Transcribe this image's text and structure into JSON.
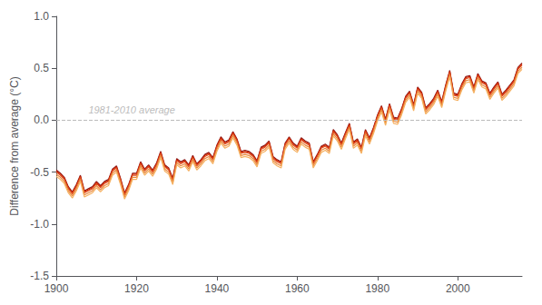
{
  "chart_data": {
    "type": "line",
    "ylabel": "Difference from average (°C)",
    "xlim": [
      1900,
      2016
    ],
    "ylim": [
      -1.5,
      1.0
    ],
    "xticks": [
      1900,
      1920,
      1940,
      1960,
      1980,
      2000
    ],
    "yticks": [
      -1.5,
      {
        "value": -1.0,
        "label": "-1.0"
      },
      -0.5,
      {
        "value": 0.0,
        "label": "0.0"
      },
      0.5,
      {
        "value": 1.0,
        "label": "1.0"
      }
    ],
    "grid": false,
    "annotations": [
      {
        "text": "1981-2010 average",
        "x": 1908,
        "y": 0.05,
        "color": "#AAAAAA"
      }
    ],
    "reference_lines": [
      {
        "y": 0,
        "color": "#BBBBBB",
        "line_style": "dashed"
      }
    ],
    "x": [
      1900,
      1901,
      1902,
      1903,
      1904,
      1905,
      1906,
      1907,
      1908,
      1909,
      1910,
      1911,
      1912,
      1913,
      1914,
      1915,
      1916,
      1917,
      1918,
      1919,
      1920,
      1921,
      1922,
      1923,
      1924,
      1925,
      1926,
      1927,
      1928,
      1929,
      1930,
      1931,
      1932,
      1933,
      1934,
      1935,
      1936,
      1937,
      1938,
      1939,
      1940,
      1941,
      1942,
      1943,
      1944,
      1945,
      1946,
      1947,
      1948,
      1949,
      1950,
      1951,
      1952,
      1953,
      1954,
      1955,
      1956,
      1957,
      1958,
      1959,
      1960,
      1961,
      1962,
      1963,
      1964,
      1965,
      1966,
      1967,
      1968,
      1969,
      1970,
      1971,
      1972,
      1973,
      1974,
      1975,
      1976,
      1977,
      1978,
      1979,
      1980,
      1981,
      1982,
      1983,
      1984,
      1985,
      1986,
      1987,
      1988,
      1989,
      1990,
      1991,
      1992,
      1993,
      1994,
      1995,
      1996,
      1997,
      1998,
      1999,
      2000,
      2001,
      2002,
      2003,
      2004,
      2005,
      2006,
      2007,
      2008,
      2009,
      2010,
      2011,
      2012,
      2013,
      2014,
      2015,
      2016
    ],
    "series": [
      {
        "color": "#8B1A1A",
        "values": [
          -0.48,
          -0.51,
          -0.55,
          -0.64,
          -0.69,
          -0.62,
          -0.53,
          -0.68,
          -0.66,
          -0.64,
          -0.59,
          -0.63,
          -0.59,
          -0.57,
          -0.47,
          -0.44,
          -0.56,
          -0.7,
          -0.62,
          -0.51,
          -0.51,
          -0.4,
          -0.47,
          -0.43,
          -0.48,
          -0.41,
          -0.3,
          -0.43,
          -0.46,
          -0.56,
          -0.37,
          -0.4,
          -0.38,
          -0.43,
          -0.34,
          -0.42,
          -0.38,
          -0.33,
          -0.31,
          -0.36,
          -0.24,
          -0.16,
          -0.21,
          -0.19,
          -0.11,
          -0.18,
          -0.3,
          -0.29,
          -0.3,
          -0.33,
          -0.39,
          -0.26,
          -0.24,
          -0.2,
          -0.35,
          -0.38,
          -0.4,
          -0.22,
          -0.16,
          -0.22,
          -0.25,
          -0.17,
          -0.2,
          -0.22,
          -0.4,
          -0.33,
          -0.25,
          -0.23,
          -0.26,
          -0.09,
          -0.14,
          -0.22,
          -0.12,
          -0.03,
          -0.21,
          -0.18,
          -0.26,
          -0.09,
          -0.17,
          -0.07,
          0.05,
          0.14,
          0.01,
          0.16,
          0.03,
          0.02,
          0.11,
          0.23,
          0.28,
          0.15,
          0.32,
          0.27,
          0.12,
          0.16,
          0.21,
          0.29,
          0.18,
          0.34,
          0.48,
          0.26,
          0.25,
          0.35,
          0.42,
          0.43,
          0.32,
          0.45,
          0.38,
          0.36,
          0.26,
          0.32,
          0.37,
          0.25,
          0.29,
          0.34,
          0.39,
          0.51,
          0.55
        ]
      },
      {
        "color": "#CC2200",
        "values": [
          -0.49,
          -0.52,
          -0.56,
          -0.65,
          -0.7,
          -0.63,
          -0.54,
          -0.69,
          -0.67,
          -0.65,
          -0.6,
          -0.64,
          -0.6,
          -0.58,
          -0.48,
          -0.45,
          -0.57,
          -0.71,
          -0.63,
          -0.52,
          -0.52,
          -0.41,
          -0.48,
          -0.44,
          -0.49,
          -0.42,
          -0.31,
          -0.44,
          -0.47,
          -0.57,
          -0.38,
          -0.41,
          -0.39,
          -0.44,
          -0.35,
          -0.43,
          -0.39,
          -0.34,
          -0.32,
          -0.37,
          -0.25,
          -0.17,
          -0.22,
          -0.2,
          -0.12,
          -0.19,
          -0.31,
          -0.3,
          -0.31,
          -0.34,
          -0.4,
          -0.27,
          -0.25,
          -0.21,
          -0.36,
          -0.39,
          -0.41,
          -0.23,
          -0.17,
          -0.23,
          -0.26,
          -0.18,
          -0.21,
          -0.23,
          -0.41,
          -0.34,
          -0.26,
          -0.24,
          -0.27,
          -0.1,
          -0.15,
          -0.23,
          -0.13,
          -0.04,
          -0.22,
          -0.19,
          -0.27,
          -0.1,
          -0.18,
          -0.08,
          0.04,
          0.13,
          0.0,
          0.15,
          0.02,
          0.01,
          0.1,
          0.22,
          0.27,
          0.14,
          0.31,
          0.26,
          0.11,
          0.15,
          0.2,
          0.28,
          0.17,
          0.33,
          0.47,
          0.25,
          0.24,
          0.34,
          0.41,
          0.42,
          0.31,
          0.44,
          0.37,
          0.35,
          0.25,
          0.31,
          0.36,
          0.24,
          0.28,
          0.33,
          0.38,
          0.5,
          0.54
        ]
      },
      {
        "color": "#E05020",
        "values": [
          -0.5,
          -0.53,
          -0.57,
          -0.66,
          -0.71,
          -0.64,
          -0.55,
          -0.7,
          -0.68,
          -0.66,
          -0.61,
          -0.65,
          -0.61,
          -0.59,
          -0.49,
          -0.46,
          -0.58,
          -0.72,
          -0.64,
          -0.53,
          -0.53,
          -0.42,
          -0.49,
          -0.45,
          -0.5,
          -0.43,
          -0.32,
          -0.45,
          -0.48,
          -0.58,
          -0.39,
          -0.42,
          -0.4,
          -0.45,
          -0.36,
          -0.44,
          -0.4,
          -0.35,
          -0.33,
          -0.38,
          -0.26,
          -0.18,
          -0.23,
          -0.21,
          -0.13,
          -0.2,
          -0.32,
          -0.31,
          -0.32,
          -0.35,
          -0.41,
          -0.28,
          -0.26,
          -0.22,
          -0.37,
          -0.4,
          -0.42,
          -0.24,
          -0.18,
          -0.24,
          -0.27,
          -0.19,
          -0.22,
          -0.24,
          -0.42,
          -0.35,
          -0.27,
          -0.25,
          -0.28,
          -0.11,
          -0.16,
          -0.24,
          -0.14,
          -0.05,
          -0.23,
          -0.2,
          -0.28,
          -0.11,
          -0.19,
          -0.09,
          0.03,
          0.12,
          -0.01,
          0.14,
          0.01,
          0.0,
          0.09,
          0.21,
          0.26,
          0.13,
          0.3,
          0.25,
          0.1,
          0.14,
          0.19,
          0.27,
          0.16,
          0.32,
          0.46,
          0.24,
          0.23,
          0.33,
          0.4,
          0.41,
          0.3,
          0.43,
          0.36,
          0.34,
          0.24,
          0.3,
          0.35,
          0.23,
          0.27,
          0.32,
          0.37,
          0.49,
          0.53
        ]
      },
      {
        "color": "#E8873A",
        "values": [
          -0.52,
          -0.55,
          -0.59,
          -0.68,
          -0.73,
          -0.66,
          -0.57,
          -0.72,
          -0.7,
          -0.68,
          -0.63,
          -0.67,
          -0.63,
          -0.61,
          -0.51,
          -0.48,
          -0.6,
          -0.74,
          -0.66,
          -0.55,
          -0.55,
          -0.44,
          -0.51,
          -0.47,
          -0.52,
          -0.45,
          -0.34,
          -0.47,
          -0.5,
          -0.6,
          -0.41,
          -0.44,
          -0.42,
          -0.47,
          -0.38,
          -0.46,
          -0.42,
          -0.37,
          -0.35,
          -0.4,
          -0.28,
          -0.2,
          -0.25,
          -0.23,
          -0.15,
          -0.22,
          -0.34,
          -0.33,
          -0.34,
          -0.37,
          -0.43,
          -0.3,
          -0.28,
          -0.24,
          -0.39,
          -0.42,
          -0.44,
          -0.26,
          -0.2,
          -0.26,
          -0.29,
          -0.21,
          -0.24,
          -0.26,
          -0.44,
          -0.37,
          -0.29,
          -0.27,
          -0.3,
          -0.13,
          -0.18,
          -0.26,
          -0.16,
          -0.07,
          -0.25,
          -0.22,
          -0.3,
          -0.13,
          -0.21,
          -0.11,
          0.01,
          0.1,
          -0.03,
          0.12,
          -0.01,
          -0.02,
          0.07,
          0.19,
          0.24,
          0.11,
          0.28,
          0.23,
          0.08,
          0.12,
          0.17,
          0.25,
          0.14,
          0.3,
          0.44,
          0.22,
          0.21,
          0.31,
          0.38,
          0.39,
          0.28,
          0.41,
          0.34,
          0.32,
          0.22,
          0.28,
          0.33,
          0.21,
          0.25,
          0.3,
          0.35,
          0.47,
          0.51
        ]
      },
      {
        "color": "#F5B060",
        "values": [
          -0.54,
          -0.57,
          -0.61,
          -0.7,
          -0.75,
          -0.68,
          -0.59,
          -0.74,
          -0.72,
          -0.7,
          -0.65,
          -0.69,
          -0.65,
          -0.63,
          -0.53,
          -0.5,
          -0.62,
          -0.76,
          -0.68,
          -0.57,
          -0.57,
          -0.46,
          -0.53,
          -0.49,
          -0.54,
          -0.47,
          -0.36,
          -0.49,
          -0.52,
          -0.62,
          -0.43,
          -0.46,
          -0.44,
          -0.49,
          -0.4,
          -0.48,
          -0.44,
          -0.39,
          -0.37,
          -0.42,
          -0.3,
          -0.22,
          -0.27,
          -0.25,
          -0.17,
          -0.24,
          -0.36,
          -0.35,
          -0.36,
          -0.39,
          -0.45,
          -0.32,
          -0.3,
          -0.26,
          -0.41,
          -0.44,
          -0.46,
          -0.28,
          -0.22,
          -0.28,
          -0.31,
          -0.23,
          -0.26,
          -0.28,
          -0.46,
          -0.39,
          -0.31,
          -0.29,
          -0.32,
          -0.15,
          -0.2,
          -0.28,
          -0.18,
          -0.09,
          -0.27,
          -0.24,
          -0.32,
          -0.15,
          -0.23,
          -0.13,
          -0.01,
          0.08,
          -0.05,
          0.1,
          -0.03,
          -0.04,
          0.05,
          0.17,
          0.22,
          0.09,
          0.26,
          0.21,
          0.06,
          0.1,
          0.15,
          0.23,
          0.12,
          0.28,
          0.42,
          0.2,
          0.19,
          0.29,
          0.36,
          0.37,
          0.26,
          0.39,
          0.32,
          0.3,
          0.2,
          0.26,
          0.31,
          0.19,
          0.23,
          0.28,
          0.33,
          0.45,
          0.49
        ]
      }
    ]
  }
}
